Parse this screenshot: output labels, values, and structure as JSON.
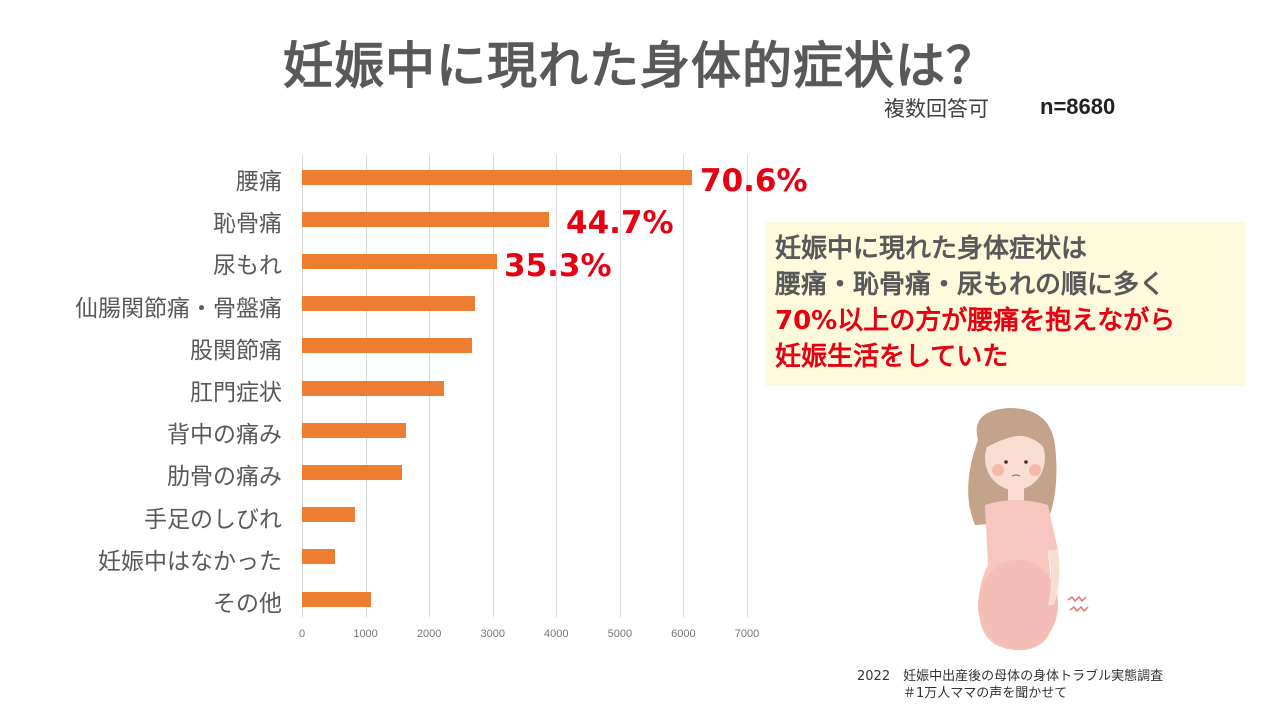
{
  "header": {
    "title": "妊娠中に現れた身体的症状は？",
    "multiple_answers": "複数回答可",
    "sample_size": "n=8680"
  },
  "chart_data": {
    "type": "bar",
    "orientation": "horizontal",
    "title": "妊娠中に現れた身体的症状は？",
    "xlabel": "",
    "ylabel": "",
    "xlim": [
      0,
      7000
    ],
    "x_ticks": [
      "0",
      "1000",
      "2000",
      "3000",
      "4000",
      "5000",
      "6000",
      "7000"
    ],
    "grid": true,
    "legend": false,
    "bar_color": "#ed7d31",
    "categories": [
      "腰痛",
      "恥骨痛",
      "尿もれ",
      "仙腸関節痛・骨盤痛",
      "股関節痛",
      "肛門症状",
      "背中の痛み",
      "肋骨の痛み",
      "手足のしびれ",
      "妊娠中はなかった",
      "その他"
    ],
    "values": [
      6130,
      3880,
      3065,
      2720,
      2670,
      2230,
      1640,
      1580,
      840,
      520,
      1090
    ],
    "annotations": [
      {
        "category": "腰痛",
        "label": "70.6%"
      },
      {
        "category": "恥骨痛",
        "label": "44.7%"
      },
      {
        "category": "尿もれ",
        "label": "35.3%"
      }
    ]
  },
  "callout": {
    "line1": "妊娠中に現れた身体症状は",
    "line2": "腰痛・恥骨痛・尿もれの順に多く",
    "line3": "70%以上の方が腰痛を抱えながら",
    "line4": "妊娠生活をしていた",
    "highlight_color": "#e60012",
    "background": "#fdfbdc"
  },
  "illustration": {
    "icon": "pregnant-woman-back-pain-illustration"
  },
  "source": {
    "line1": "2022　妊娠中出産後の母体の身体トラブル実態調査",
    "line2": "＃1万人ママの声を聞かせて"
  }
}
